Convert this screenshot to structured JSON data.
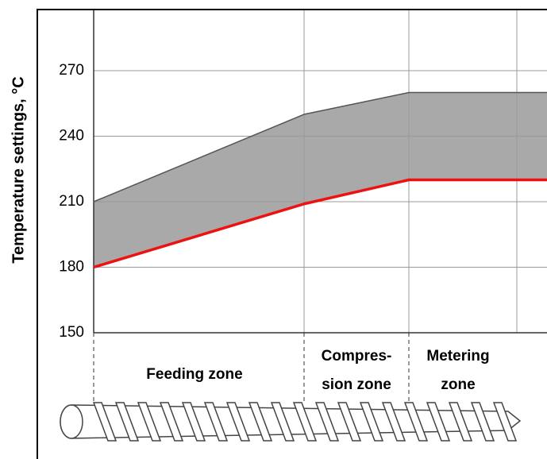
{
  "chart_data": {
    "type": "area",
    "y_label": "Temperature settings, °C",
    "categories": [
      null,
      null,
      null,
      null
    ],
    "series": [
      {
        "color": "#555555",
        "values": [
          210,
          250,
          260,
          260
        ]
      },
      {
        "color": "#ee1111",
        "values": [
          180,
          209,
          220,
          220
        ]
      }
    ],
    "fill": "#a9a9a9",
    "ylim": [
      150,
      298
    ],
    "yticks": [
      150,
      180,
      210,
      240,
      270
    ],
    "grid": true,
    "zones": [
      [
        "Feeding zone"
      ],
      [
        "Compres-",
        "sion zone"
      ],
      [
        "Metering",
        "zone"
      ]
    ]
  }
}
